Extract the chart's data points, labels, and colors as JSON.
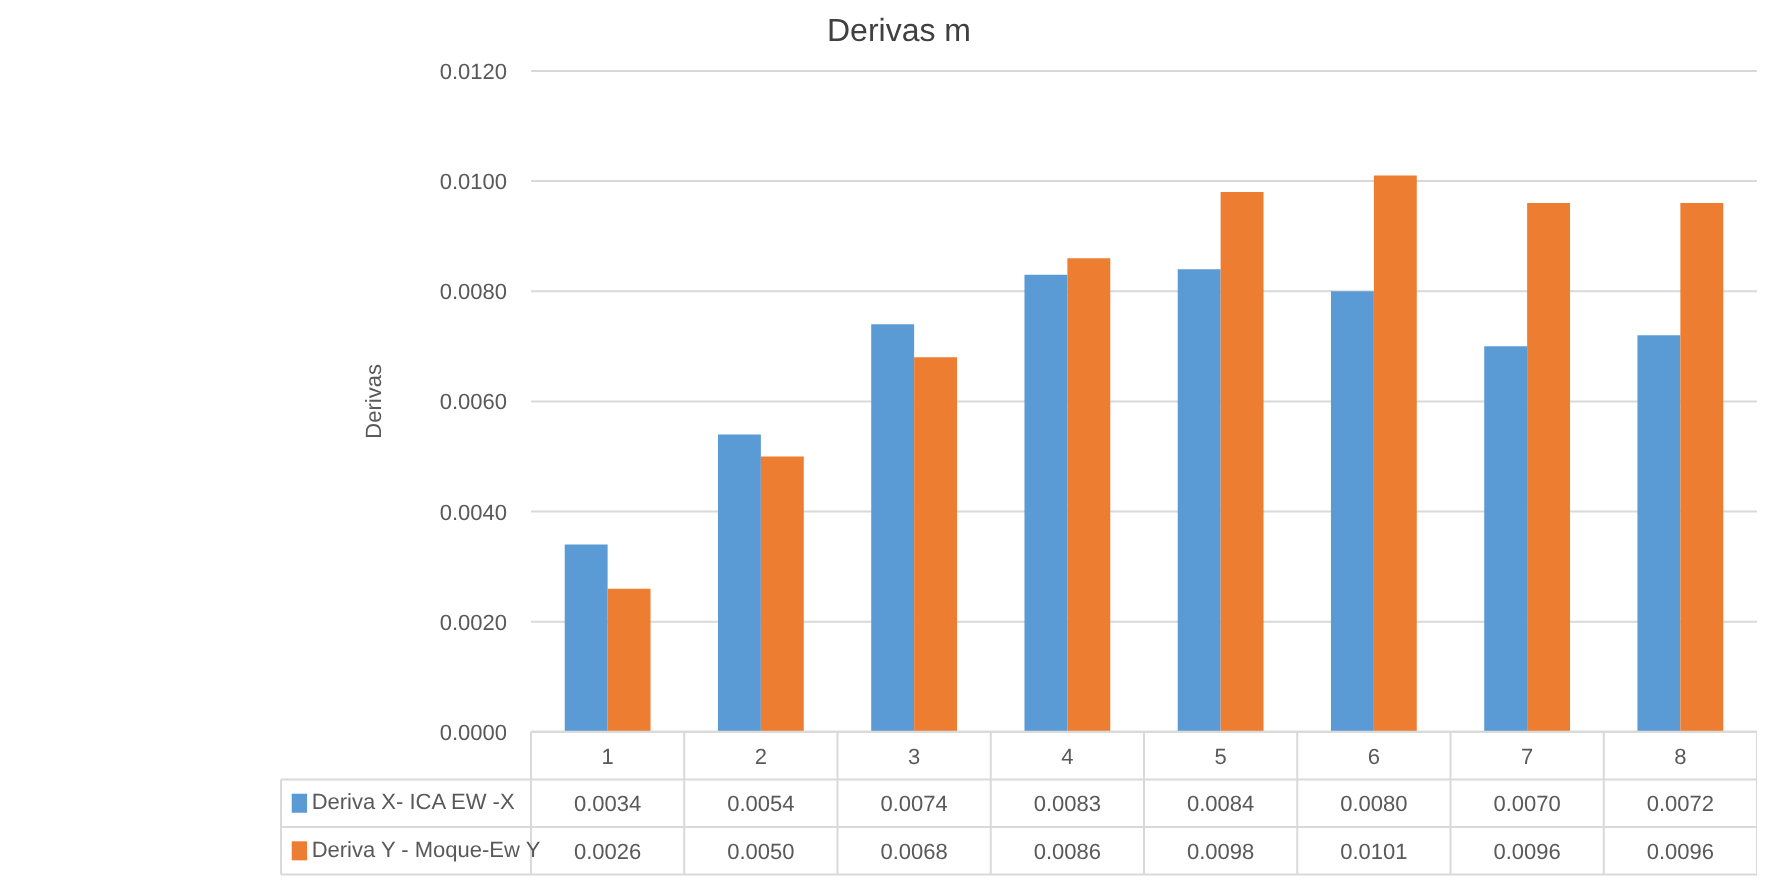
{
  "chart_data": {
    "type": "bar",
    "title": "Derivas m",
    "ylabel": "Derivas",
    "categories": [
      "1",
      "2",
      "3",
      "4",
      "5",
      "6",
      "7",
      "8"
    ],
    "series": [
      {
        "name": "Deriva X- ICA EW -X",
        "color": "#5b9bd5",
        "values": [
          0.0034,
          0.0054,
          0.0074,
          0.0083,
          0.0084,
          0.008,
          0.007,
          0.0072
        ],
        "value_labels": [
          "0.0034",
          "0.0054",
          "0.0074",
          "0.0083",
          "0.0084",
          "0.0080",
          "0.0070",
          "0.0072"
        ]
      },
      {
        "name": "Deriva Y - Moque-Ew Y",
        "color": "#ed7d31",
        "values": [
          0.0026,
          0.005,
          0.0068,
          0.0086,
          0.0098,
          0.0101,
          0.0096,
          0.0096
        ],
        "value_labels": [
          "0.0026",
          "0.0050",
          "0.0068",
          "0.0086",
          "0.0098",
          "0.0101",
          "0.0096",
          "0.0096"
        ]
      }
    ],
    "ylim": [
      0,
      0.012
    ],
    "yticks": [
      {
        "value": 0,
        "label": "0.0000"
      },
      {
        "value": 0.002,
        "label": "0.0020"
      },
      {
        "value": 0.004,
        "label": "0.0040"
      },
      {
        "value": 0.006,
        "label": "0.0060"
      },
      {
        "value": 0.008,
        "label": "0.0080"
      },
      {
        "value": 0.01,
        "label": "0.0100"
      },
      {
        "value": 0.012,
        "label": "0.0120"
      }
    ],
    "grid": "y",
    "legend": "bottom"
  }
}
